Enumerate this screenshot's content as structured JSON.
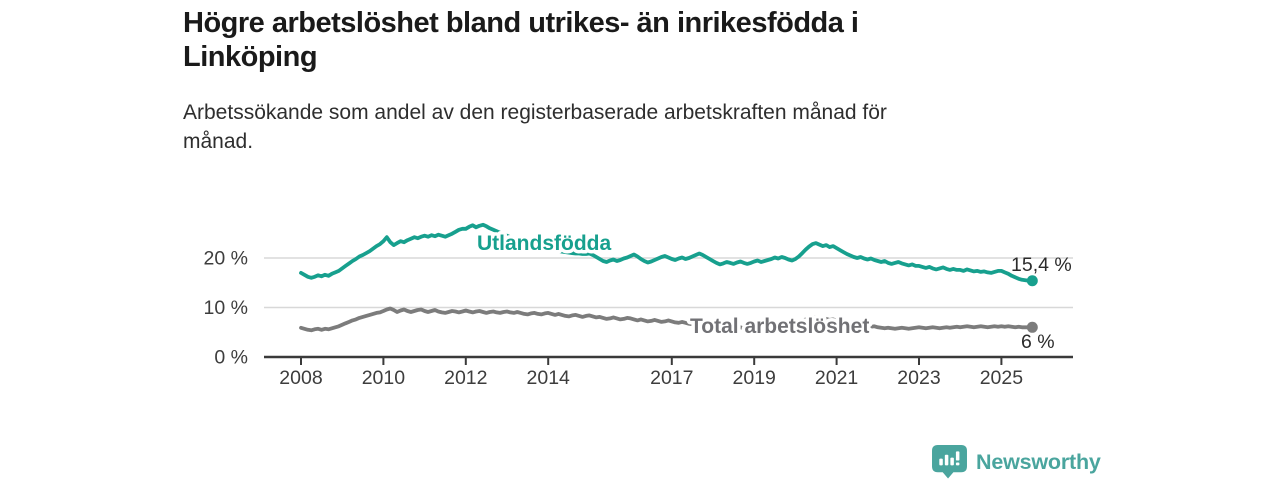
{
  "header": {
    "title_lines": [
      "Högre arbetslöshet bland utrikes- än inrikesfödda i",
      "Linköping"
    ],
    "subtitle_lines": [
      "Arbetssökande som andel av den registerbaserade arbetskraften månad för",
      "månad."
    ]
  },
  "footer": {
    "brand": "Newsworthy"
  },
  "colors": {
    "series_utlandsfodda": "#17a08e",
    "series_total": "#7c7c7c",
    "series_total_label": "#717175",
    "brand_teal": "#4aa59e",
    "grid": "#d8d8d8",
    "axis": "#3a3a3a",
    "value_label": "#2b2b2b"
  },
  "chart_data": {
    "type": "line",
    "title": "Högre arbetslöshet bland utrikes- än inrikesfödda i Linköping",
    "subtitle": "Arbetssökande som andel av den registerbaserade arbetskraften månad för månad.",
    "x_start": "2008-01",
    "x_end": "2025-10",
    "points_per_year": 12,
    "x_tick_years": [
      2008,
      2010,
      2012,
      2014,
      2017,
      2019,
      2021,
      2023,
      2025
    ],
    "x_tick_labels": [
      "2008",
      "2010",
      "2012",
      "2014",
      "2017",
      "2019",
      "2021",
      "2023",
      "2025"
    ],
    "y_ticks": [
      0,
      10,
      20
    ],
    "y_tick_labels": [
      "0 %",
      "10 %",
      "20 %"
    ],
    "ylim": [
      0,
      28
    ],
    "grid": "horizontal",
    "legend_position": "inline-labels",
    "series": [
      {
        "name": "Utlandsfödda",
        "color": "#17a08e",
        "end_label": "15,4 %",
        "end_value": 15.4,
        "values": [
          17.0,
          16.6,
          16.2,
          16.0,
          16.2,
          16.5,
          16.3,
          16.6,
          16.4,
          16.8,
          17.1,
          17.4,
          17.9,
          18.4,
          18.9,
          19.4,
          19.8,
          20.3,
          20.6,
          21.0,
          21.4,
          21.9,
          22.4,
          22.8,
          23.4,
          24.2,
          23.2,
          22.6,
          23.0,
          23.4,
          23.2,
          23.6,
          23.9,
          24.2,
          24.0,
          24.3,
          24.5,
          24.3,
          24.6,
          24.4,
          24.7,
          24.5,
          24.3,
          24.6,
          24.9,
          25.3,
          25.7,
          25.9,
          25.9,
          26.3,
          26.6,
          26.2,
          26.5,
          26.7,
          26.4,
          26.0,
          25.7,
          25.4,
          25.1,
          24.8,
          24.5,
          24.2,
          23.9,
          23.7,
          23.4,
          23.2,
          23.0,
          22.8,
          22.6,
          22.4,
          22.2,
          22.0,
          21.9,
          21.7,
          21.6,
          21.4,
          21.3,
          21.2,
          21.1,
          21.0,
          20.9,
          20.9,
          20.8,
          20.8,
          20.9,
          20.6,
          20.2,
          19.8,
          19.4,
          19.2,
          19.5,
          19.7,
          19.4,
          19.6,
          19.9,
          20.1,
          20.4,
          20.7,
          20.3,
          19.8,
          19.4,
          19.1,
          19.3,
          19.6,
          19.9,
          20.2,
          20.4,
          20.1,
          19.8,
          19.6,
          19.9,
          20.1,
          19.8,
          20.0,
          20.3,
          20.6,
          20.9,
          20.6,
          20.2,
          19.8,
          19.4,
          19.0,
          18.7,
          18.9,
          19.2,
          19.0,
          18.8,
          19.1,
          19.3,
          19.0,
          18.8,
          19.0,
          19.3,
          19.5,
          19.2,
          19.4,
          19.6,
          19.8,
          20.1,
          19.9,
          20.2,
          20.0,
          19.7,
          19.5,
          19.8,
          20.3,
          21.0,
          21.7,
          22.3,
          22.8,
          23.0,
          22.7,
          22.4,
          22.6,
          22.2,
          22.4,
          22.0,
          21.6,
          21.2,
          20.8,
          20.5,
          20.2,
          20.0,
          20.2,
          19.9,
          19.7,
          19.9,
          19.6,
          19.4,
          19.2,
          19.4,
          19.0,
          18.8,
          19.0,
          19.2,
          18.9,
          18.7,
          18.5,
          18.7,
          18.4,
          18.4,
          18.2,
          18.0,
          18.2,
          17.9,
          17.7,
          17.9,
          18.1,
          17.8,
          17.6,
          17.8,
          17.6,
          17.6,
          17.4,
          17.7,
          17.5,
          17.3,
          17.4,
          17.2,
          17.3,
          17.1,
          17.0,
          17.2,
          17.4,
          17.4,
          17.1,
          16.8,
          16.4,
          16.1,
          15.8,
          15.6,
          15.5,
          15.4,
          15.4
        ]
      },
      {
        "name": "Total arbetslöshet",
        "color": "#7c7c7c",
        "end_label": "6 %",
        "end_value": 6.0,
        "values": [
          5.9,
          5.7,
          5.5,
          5.4,
          5.6,
          5.7,
          5.5,
          5.7,
          5.6,
          5.8,
          6.0,
          6.2,
          6.5,
          6.8,
          7.1,
          7.4,
          7.6,
          7.9,
          8.1,
          8.3,
          8.5,
          8.7,
          8.9,
          9.0,
          9.3,
          9.6,
          9.8,
          9.5,
          9.1,
          9.4,
          9.6,
          9.3,
          9.1,
          9.3,
          9.5,
          9.6,
          9.3,
          9.1,
          9.3,
          9.5,
          9.2,
          9.0,
          8.9,
          9.1,
          9.3,
          9.2,
          9.0,
          9.2,
          9.4,
          9.2,
          9.0,
          9.2,
          9.3,
          9.1,
          8.9,
          9.1,
          9.2,
          9.0,
          8.9,
          9.1,
          9.2,
          9.0,
          8.9,
          9.1,
          8.9,
          8.7,
          8.6,
          8.8,
          8.9,
          8.7,
          8.6,
          8.8,
          8.9,
          8.7,
          8.5,
          8.7,
          8.5,
          8.3,
          8.2,
          8.4,
          8.5,
          8.3,
          8.1,
          8.3,
          8.4,
          8.2,
          8.0,
          8.1,
          7.9,
          7.7,
          7.8,
          8.0,
          7.8,
          7.6,
          7.7,
          7.9,
          7.8,
          7.6,
          7.4,
          7.6,
          7.4,
          7.2,
          7.3,
          7.5,
          7.3,
          7.1,
          7.2,
          7.4,
          7.2,
          7.0,
          6.9,
          7.1,
          6.9,
          6.7,
          6.6,
          6.8,
          6.7,
          6.5,
          6.4,
          6.6,
          6.5,
          6.3,
          6.2,
          6.4,
          6.2,
          6.0,
          5.9,
          6.1,
          6.0,
          5.8,
          5.7,
          5.9,
          6.0,
          5.8,
          5.7,
          5.9,
          5.8,
          5.6,
          5.7,
          5.9,
          5.8,
          6.0,
          5.9,
          6.1,
          6.4,
          6.7,
          7.2,
          7.6,
          7.9,
          8.1,
          8.0,
          7.8,
          7.9,
          7.7,
          7.5,
          7.6,
          7.4,
          7.2,
          7.3,
          7.1,
          6.9,
          6.7,
          6.8,
          6.6,
          6.4,
          6.2,
          6.1,
          6.2,
          6.0,
          5.9,
          5.8,
          5.9,
          5.8,
          5.7,
          5.8,
          5.9,
          5.8,
          5.7,
          5.8,
          5.9,
          6.0,
          5.9,
          5.8,
          5.9,
          6.0,
          5.9,
          5.8,
          5.9,
          6.0,
          5.9,
          6.0,
          6.1,
          6.0,
          6.1,
          6.2,
          6.1,
          6.0,
          6.1,
          6.2,
          6.1,
          6.0,
          6.1,
          6.2,
          6.1,
          6.2,
          6.1,
          6.2,
          6.1,
          6.0,
          6.1,
          6.0,
          6.0,
          6.0,
          6.0
        ]
      }
    ]
  }
}
